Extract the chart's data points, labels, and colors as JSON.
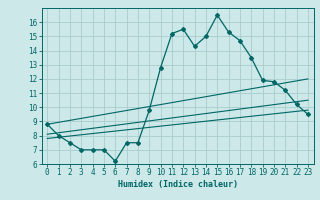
{
  "xlabel": "Humidex (Indice chaleur)",
  "bg_color": "#cce8e8",
  "grid_color": "#aacccc",
  "line_color": "#006666",
  "x": [
    0,
    1,
    2,
    3,
    4,
    5,
    6,
    7,
    8,
    9,
    10,
    11,
    12,
    13,
    14,
    15,
    16,
    17,
    18,
    19,
    20,
    21,
    22,
    23
  ],
  "line1": [
    8.8,
    8.0,
    7.5,
    7.0,
    7.0,
    7.0,
    6.2,
    7.5,
    7.5,
    9.8,
    12.8,
    15.2,
    15.5,
    14.3,
    15.0,
    16.5,
    15.3,
    14.7,
    13.5,
    11.9,
    11.8,
    11.2,
    10.2,
    9.5
  ],
  "straight_lines": [
    [
      0,
      8.8,
      23,
      12.0
    ],
    [
      0,
      8.1,
      23,
      10.5
    ],
    [
      0,
      7.8,
      23,
      9.8
    ]
  ],
  "ylim": [
    6,
    17
  ],
  "yticks": [
    6,
    7,
    8,
    9,
    10,
    11,
    12,
    13,
    14,
    15,
    16
  ],
  "xlim": [
    -0.5,
    23.5
  ],
  "xticks": [
    0,
    1,
    2,
    3,
    4,
    5,
    6,
    7,
    8,
    9,
    10,
    11,
    12,
    13,
    14,
    15,
    16,
    17,
    18,
    19,
    20,
    21,
    22,
    23
  ]
}
